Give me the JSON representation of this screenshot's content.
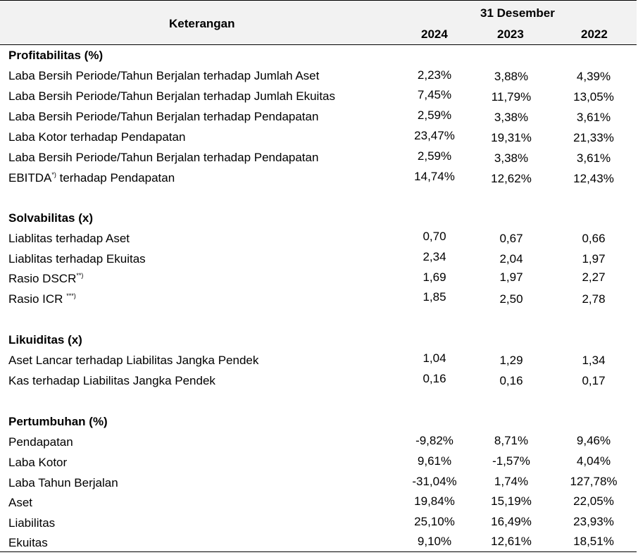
{
  "header": {
    "description_label": "Keterangan",
    "period_label": "31 Desember",
    "years": [
      "2024",
      "2023",
      "2022"
    ]
  },
  "sections": [
    {
      "title": "Profitabilitas (%)",
      "rows": [
        {
          "label": "Laba Bersih Periode/Tahun Berjalan terhadap Jumlah Aset",
          "values": [
            "2,23%",
            "3,88%",
            "4,39%"
          ]
        },
        {
          "label": "Laba Bersih Periode/Tahun Berjalan terhadap Jumlah Ekuitas",
          "values": [
            "7,45%",
            "11,79%",
            "13,05%"
          ]
        },
        {
          "label": "Laba Bersih Periode/Tahun Berjalan terhadap Pendapatan",
          "values": [
            "2,59%",
            "3,38%",
            "3,61%"
          ]
        },
        {
          "label": "Laba Kotor terhadap Pendapatan",
          "values": [
            "23,47%",
            "19,31%",
            "21,33%"
          ]
        },
        {
          "label": "Laba Bersih Periode/Tahun Berjalan terhadap Pendapatan",
          "values": [
            "2,59%",
            "3,38%",
            "3,61%"
          ]
        },
        {
          "label": "EBITDA",
          "note": "*)",
          "label_suffix": " terhadap Pendapatan",
          "values": [
            "14,74%",
            "12,62%",
            "12,43%"
          ]
        }
      ]
    },
    {
      "title": "Solvabilitas (x)",
      "rows": [
        {
          "label": "Liablitas terhadap Aset",
          "values": [
            "0,70",
            "0,67",
            "0,66"
          ]
        },
        {
          "label": "Liablitas terhadap Ekuitas",
          "values": [
            "2,34",
            "2,04",
            "1,97"
          ]
        },
        {
          "label": "Rasio DSCR",
          "note": "**)",
          "values": [
            "1,69",
            "1,97",
            "2,27"
          ]
        },
        {
          "label": "Rasio ICR ",
          "note": "***)",
          "values": [
            "1,85",
            "2,50",
            "2,78"
          ]
        }
      ]
    },
    {
      "title": "Likuiditas (x)",
      "rows": [
        {
          "label": "Aset Lancar terhadap Liabilitas Jangka Pendek",
          "values": [
            "1,04",
            "1,29",
            "1,34"
          ]
        },
        {
          "label": "Kas terhadap Liabilitas Jangka Pendek",
          "values": [
            "0,16",
            "0,16",
            "0,17"
          ]
        }
      ]
    },
    {
      "title": "Pertumbuhan (%)",
      "rows": [
        {
          "label": "Pendapatan",
          "values": [
            "-9,82%",
            "8,71%",
            "9,46%"
          ]
        },
        {
          "label": "Laba Kotor",
          "values": [
            "9,61%",
            "-1,57%",
            "4,04%"
          ]
        },
        {
          "label": "Laba Tahun Berjalan",
          "values": [
            "-31,04%",
            "1,74%",
            "127,78%"
          ]
        },
        {
          "label": "Aset",
          "values": [
            "19,84%",
            "15,19%",
            "22,05%"
          ]
        },
        {
          "label": "Liabilitas",
          "values": [
            "25,10%",
            "16,49%",
            "23,93%"
          ]
        },
        {
          "label": "Ekuitas",
          "values": [
            "9,10%",
            "12,61%",
            "18,51%"
          ]
        }
      ]
    }
  ]
}
